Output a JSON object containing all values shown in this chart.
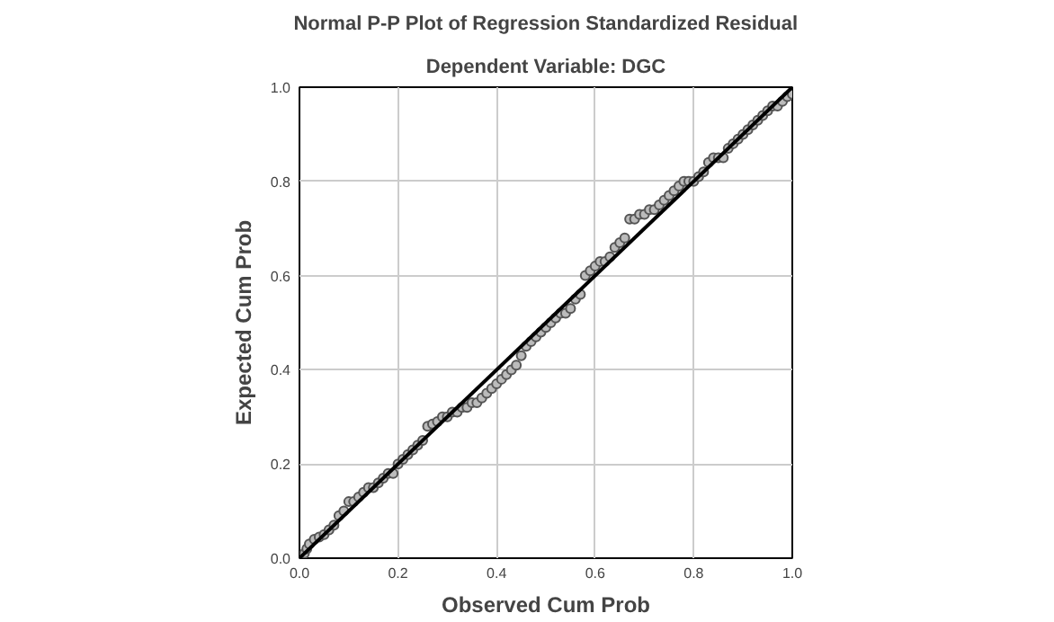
{
  "chart_data": {
    "type": "scatter",
    "title": "Normal P-P Plot of Regression Standardized Residual",
    "subtitle": "Dependent Variable: DGC",
    "xlabel": "Observed Cum Prob",
    "ylabel": "Expected Cum Prob",
    "xlim": [
      0,
      1
    ],
    "ylim": [
      0,
      1
    ],
    "xticks": [
      {
        "value": 0,
        "label": "0.0"
      },
      0.2,
      0.4,
      0.6,
      0.8,
      {
        "value": 1,
        "label": "1.0"
      }
    ],
    "yticks": [
      {
        "value": 0,
        "label": "0.0"
      },
      0.2,
      0.4,
      0.6,
      0.8,
      {
        "value": 1,
        "label": "1.0"
      }
    ],
    "grid": true,
    "marker": "circle",
    "series": [
      {
        "color": "#555555",
        "x": [
          0.01,
          0.015,
          0.02,
          0.03,
          0.04,
          0.05,
          0.06,
          0.07,
          0.08,
          0.09,
          0.1,
          0.11,
          0.12,
          0.13,
          0.14,
          0.15,
          0.16,
          0.17,
          0.18,
          0.19,
          0.2,
          0.21,
          0.22,
          0.23,
          0.24,
          0.25,
          0.26,
          0.27,
          0.28,
          0.29,
          0.3,
          0.31,
          0.32,
          0.33,
          0.34,
          0.35,
          0.36,
          0.37,
          0.38,
          0.39,
          0.4,
          0.41,
          0.42,
          0.43,
          0.44,
          0.45,
          0.46,
          0.47,
          0.48,
          0.49,
          0.5,
          0.51,
          0.52,
          0.53,
          0.54,
          0.55,
          0.56,
          0.57,
          0.58,
          0.59,
          0.6,
          0.61,
          0.62,
          0.63,
          0.64,
          0.65,
          0.66,
          0.67,
          0.68,
          0.69,
          0.7,
          0.71,
          0.72,
          0.73,
          0.74,
          0.75,
          0.76,
          0.77,
          0.78,
          0.79,
          0.8,
          0.81,
          0.82,
          0.83,
          0.84,
          0.85,
          0.86,
          0.87,
          0.88,
          0.89,
          0.9,
          0.91,
          0.92,
          0.93,
          0.94,
          0.95,
          0.96,
          0.97,
          0.98,
          0.99,
          1.0
        ],
        "values": [
          0.01,
          0.02,
          0.03,
          0.04,
          0.045,
          0.05,
          0.06,
          0.07,
          0.09,
          0.1,
          0.12,
          0.12,
          0.13,
          0.14,
          0.15,
          0.15,
          0.16,
          0.17,
          0.18,
          0.18,
          0.2,
          0.21,
          0.22,
          0.23,
          0.24,
          0.25,
          0.28,
          0.285,
          0.29,
          0.3,
          0.3,
          0.31,
          0.31,
          0.32,
          0.32,
          0.33,
          0.33,
          0.34,
          0.35,
          0.36,
          0.37,
          0.38,
          0.39,
          0.4,
          0.41,
          0.43,
          0.45,
          0.46,
          0.47,
          0.48,
          0.49,
          0.5,
          0.51,
          0.52,
          0.52,
          0.53,
          0.55,
          0.56,
          0.6,
          0.61,
          0.62,
          0.63,
          0.63,
          0.64,
          0.66,
          0.67,
          0.68,
          0.72,
          0.72,
          0.73,
          0.73,
          0.74,
          0.74,
          0.75,
          0.76,
          0.77,
          0.78,
          0.79,
          0.8,
          0.8,
          0.8,
          0.81,
          0.82,
          0.84,
          0.85,
          0.85,
          0.85,
          0.87,
          0.88,
          0.89,
          0.9,
          0.91,
          0.92,
          0.93,
          0.94,
          0.95,
          0.96,
          0.96,
          0.97,
          0.98,
          0.985
        ]
      },
      {
        "type": "line",
        "marker": "none",
        "color": "#000000",
        "x": [
          0,
          1
        ],
        "values": [
          0,
          1
        ]
      }
    ]
  }
}
